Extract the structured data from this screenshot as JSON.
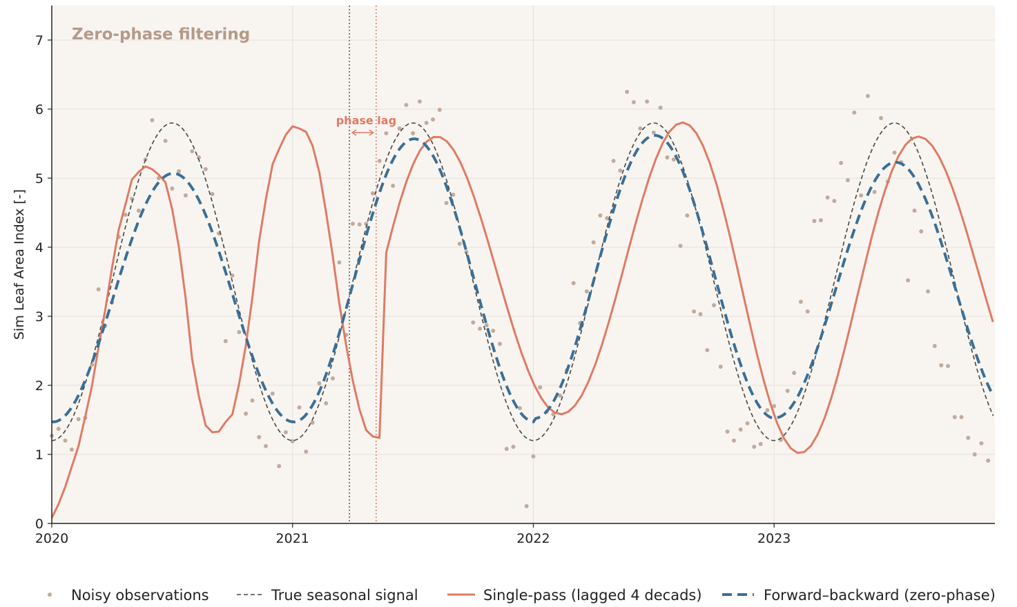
{
  "chart_data": {
    "type": "line",
    "title": "Zero-phase filtering",
    "xlabel": "",
    "ylabel": "Sim Leaf Area Index [-]",
    "xlim": [
      2020.0,
      2023.917
    ],
    "ylim": [
      0,
      7.5
    ],
    "x_ticks": [
      2020,
      2021,
      2022,
      2023
    ],
    "x_tick_labels": [
      "2020",
      "2021",
      "2022",
      "2023"
    ],
    "y_ticks": [
      0,
      1,
      2,
      3,
      4,
      5,
      6,
      7
    ],
    "y_tick_labels": [
      "0",
      "1",
      "2",
      "3",
      "4",
      "5",
      "6",
      "7"
    ],
    "grid": true,
    "legend_position": "bottom",
    "annotation": {
      "text": "phase lag",
      "x_from": 2021.236,
      "x_to": 2021.347,
      "y": 5.7
    },
    "vlines": [
      {
        "x": 2021.236,
        "color": "#555555",
        "style": "dotted"
      },
      {
        "x": 2021.347,
        "color": "#e07a62",
        "style": "dotted"
      }
    ],
    "series": [
      {
        "name": "Noisy observations",
        "style": "scatter",
        "color": "#c2ab9c",
        "points": [
          [
            2020.0,
            1.27
          ],
          [
            2020.028,
            1.37
          ],
          [
            2020.056,
            1.2
          ],
          [
            2020.083,
            1.07
          ],
          [
            2020.111,
            1.51
          ],
          [
            2020.139,
            1.53
          ],
          [
            2020.167,
            2.3
          ],
          [
            2020.194,
            3.39
          ],
          [
            2020.222,
            2.86
          ],
          [
            2020.25,
            3.2
          ],
          [
            2020.278,
            4.15
          ],
          [
            2020.306,
            4.47
          ],
          [
            2020.333,
            4.7
          ],
          [
            2020.361,
            4.53
          ],
          [
            2020.389,
            5.27
          ],
          [
            2020.417,
            5.84
          ],
          [
            2020.444,
            5.0
          ],
          [
            2020.472,
            5.54
          ],
          [
            2020.5,
            4.85
          ],
          [
            2020.528,
            5.1
          ],
          [
            2020.556,
            4.75
          ],
          [
            2020.583,
            5.39
          ],
          [
            2020.611,
            5.3
          ],
          [
            2020.639,
            5.13
          ],
          [
            2020.667,
            4.77
          ],
          [
            2020.694,
            4.2
          ],
          [
            2020.722,
            2.64
          ],
          [
            2020.75,
            3.59
          ],
          [
            2020.778,
            2.77
          ],
          [
            2020.806,
            1.59
          ],
          [
            2020.833,
            1.78
          ],
          [
            2020.861,
            1.25
          ],
          [
            2020.889,
            1.12
          ],
          [
            2020.917,
            1.88
          ],
          [
            2020.944,
            0.83
          ],
          [
            2020.972,
            1.32
          ],
          [
            2021.0,
            1.19
          ],
          [
            2021.028,
            1.68
          ],
          [
            2021.056,
            1.04
          ],
          [
            2021.083,
            1.46
          ],
          [
            2021.111,
            2.03
          ],
          [
            2021.139,
            1.74
          ],
          [
            2021.167,
            2.1
          ],
          [
            2021.194,
            3.78
          ],
          [
            2021.222,
            2.73
          ],
          [
            2021.25,
            4.34
          ],
          [
            2021.278,
            4.33
          ],
          [
            2021.306,
            4.34
          ],
          [
            2021.333,
            4.78
          ],
          [
            2021.361,
            5.25
          ],
          [
            2021.389,
            5.65
          ],
          [
            2021.417,
            4.89
          ],
          [
            2021.444,
            5.72
          ],
          [
            2021.472,
            6.06
          ],
          [
            2021.5,
            5.65
          ],
          [
            2021.528,
            6.11
          ],
          [
            2021.556,
            5.8
          ],
          [
            2021.583,
            5.85
          ],
          [
            2021.611,
            5.99
          ],
          [
            2021.639,
            4.64
          ],
          [
            2021.667,
            4.76
          ],
          [
            2021.694,
            4.05
          ],
          [
            2021.722,
            3.93
          ],
          [
            2021.75,
            2.91
          ],
          [
            2021.778,
            2.82
          ],
          [
            2021.806,
            2.87
          ],
          [
            2021.833,
            2.79
          ],
          [
            2021.861,
            2.6
          ],
          [
            2021.889,
            1.08
          ],
          [
            2021.917,
            1.11
          ],
          [
            2021.944,
            1.67
          ],
          [
            2021.972,
            0.25
          ],
          [
            2022.0,
            0.97
          ],
          [
            2022.028,
            1.97
          ],
          [
            2022.056,
            1.62
          ],
          [
            2022.083,
            1.58
          ],
          [
            2022.111,
            1.85
          ],
          [
            2022.139,
            2.22
          ],
          [
            2022.167,
            3.48
          ],
          [
            2022.194,
            2.9
          ],
          [
            2022.222,
            3.36
          ],
          [
            2022.25,
            4.07
          ],
          [
            2022.278,
            4.46
          ],
          [
            2022.306,
            4.42
          ],
          [
            2022.333,
            5.25
          ],
          [
            2022.361,
            5.11
          ],
          [
            2022.389,
            6.25
          ],
          [
            2022.417,
            6.1
          ],
          [
            2022.444,
            5.72
          ],
          [
            2022.472,
            6.11
          ],
          [
            2022.5,
            5.66
          ],
          [
            2022.528,
            6.02
          ],
          [
            2022.556,
            5.3
          ],
          [
            2022.583,
            5.27
          ],
          [
            2022.611,
            4.02
          ],
          [
            2022.639,
            4.46
          ],
          [
            2022.667,
            3.07
          ],
          [
            2022.694,
            3.03
          ],
          [
            2022.722,
            2.51
          ],
          [
            2022.75,
            3.16
          ],
          [
            2022.778,
            2.27
          ],
          [
            2022.806,
            1.33
          ],
          [
            2022.833,
            1.2
          ],
          [
            2022.861,
            1.36
          ],
          [
            2022.889,
            1.45
          ],
          [
            2022.917,
            1.11
          ],
          [
            2022.944,
            1.15
          ],
          [
            2022.972,
            1.64
          ],
          [
            2023.0,
            1.7
          ],
          [
            2023.028,
            1.21
          ],
          [
            2023.056,
            1.92
          ],
          [
            2023.083,
            2.18
          ],
          [
            2023.111,
            3.21
          ],
          [
            2023.139,
            3.07
          ],
          [
            2023.167,
            4.38
          ],
          [
            2023.194,
            4.39
          ],
          [
            2023.222,
            4.72
          ],
          [
            2023.25,
            4.67
          ],
          [
            2023.278,
            5.22
          ],
          [
            2023.306,
            4.97
          ],
          [
            2023.333,
            5.95
          ],
          [
            2023.361,
            4.75
          ],
          [
            2023.389,
            6.19
          ],
          [
            2023.417,
            4.8
          ],
          [
            2023.444,
            5.87
          ],
          [
            2023.472,
            4.95
          ],
          [
            2023.5,
            5.37
          ],
          [
            2023.528,
            5.23
          ],
          [
            2023.556,
            3.52
          ],
          [
            2023.583,
            4.53
          ],
          [
            2023.611,
            4.23
          ],
          [
            2023.639,
            3.36
          ],
          [
            2023.667,
            2.57
          ],
          [
            2023.694,
            2.29
          ],
          [
            2023.722,
            2.28
          ],
          [
            2023.75,
            1.54
          ],
          [
            2023.778,
            1.54
          ],
          [
            2023.806,
            1.24
          ],
          [
            2023.833,
            1.0
          ],
          [
            2023.861,
            1.16
          ],
          [
            2023.889,
            0.91
          ]
        ]
      },
      {
        "name": "True seasonal signal",
        "style": "dashed-thin",
        "color": "#444444",
        "curve": {
          "mean": 3.5,
          "amplitude": 2.3,
          "phase_shift": 0.0,
          "min_x": 2020.0,
          "max_x": 2023.917,
          "step": 0.01
        }
      },
      {
        "name": "Single-pass (lagged 4 decads)",
        "style": "solid",
        "color": "#e07a62",
        "points": [
          [
            2020.0,
            0.08
          ],
          [
            2020.028,
            0.28
          ],
          [
            2020.056,
            0.53
          ],
          [
            2020.083,
            0.82
          ],
          [
            2020.111,
            1.12
          ],
          [
            2020.139,
            1.55
          ],
          [
            2020.167,
            1.99
          ],
          [
            2020.194,
            2.55
          ],
          [
            2020.222,
            3.09
          ],
          [
            2020.25,
            3.7
          ],
          [
            2020.278,
            4.25
          ],
          [
            2020.306,
            4.62
          ],
          [
            2020.333,
            4.98
          ],
          [
            2020.361,
            5.09
          ],
          [
            2020.389,
            5.17
          ],
          [
            2020.417,
            5.13
          ],
          [
            2020.444,
            5.05
          ],
          [
            2020.472,
            4.94
          ],
          [
            2020.5,
            4.55
          ],
          [
            2020.528,
            4.0
          ],
          [
            2020.556,
            3.26
          ],
          [
            2020.583,
            2.38
          ],
          [
            2020.611,
            1.84
          ],
          [
            2020.639,
            1.42
          ],
          [
            2020.667,
            1.32
          ],
          [
            2020.694,
            1.33
          ],
          [
            2020.722,
            1.47
          ],
          [
            2020.75,
            1.58
          ],
          [
            2020.778,
            2.02
          ],
          [
            2020.806,
            2.58
          ],
          [
            2020.833,
            3.27
          ],
          [
            2020.861,
            4.09
          ],
          [
            2020.889,
            4.69
          ],
          [
            2020.917,
            5.2
          ],
          [
            2020.944,
            5.42
          ],
          [
            2020.972,
            5.63
          ],
          [
            2021.0,
            5.75
          ],
          [
            2021.028,
            5.72
          ],
          [
            2021.056,
            5.67
          ],
          [
            2021.083,
            5.47
          ],
          [
            2021.111,
            5.09
          ],
          [
            2021.139,
            4.51
          ],
          [
            2021.167,
            3.87
          ],
          [
            2021.194,
            3.19
          ],
          [
            2021.222,
            2.59
          ],
          [
            2021.25,
            2.07
          ],
          [
            2021.278,
            1.65
          ],
          [
            2021.306,
            1.35
          ],
          [
            2021.333,
            1.26
          ],
          [
            2021.361,
            1.24
          ]
        ]
      },
      {
        "name": "Forward–backward (zero-phase)",
        "style": "dashed-thick",
        "color": "#3a6f97",
        "points": []
      }
    ]
  },
  "legend": {
    "items": [
      {
        "label": "Noisy observations"
      },
      {
        "label": "True seasonal signal"
      },
      {
        "label": "Single-pass (lagged 4 decads)"
      },
      {
        "label": "Forward–backward (zero-phase)"
      }
    ]
  },
  "colors": {
    "background": "#f8f5f1",
    "grid": "#e4dfda",
    "axis": "#222222"
  }
}
